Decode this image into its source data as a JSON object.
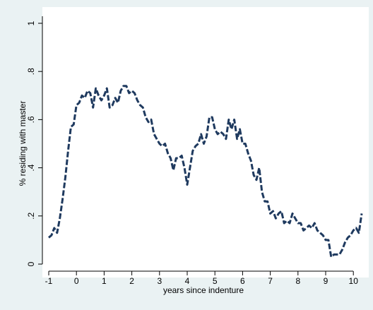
{
  "chart_data": {
    "type": "line",
    "title": "",
    "xlabel": "years since indenture",
    "ylabel": "% residing with master",
    "xlim": [
      -1,
      10.3
    ],
    "ylim": [
      0,
      1
    ],
    "xticks": [
      -1,
      0,
      1,
      2,
      3,
      4,
      5,
      6,
      7,
      8,
      9,
      10
    ],
    "yticks": [
      0,
      0.2,
      0.4,
      0.6,
      0.8,
      1
    ],
    "ytick_labels": [
      "0",
      ".2",
      ".4",
      ".6",
      ".8",
      "1"
    ],
    "grid": false,
    "legend": "none",
    "line_style": "dashed",
    "line_color": "#1f3a5f",
    "plot_background": "#ffffff",
    "page_background": "#eaf2f3",
    "series": [
      {
        "x": [
          -1.0,
          -0.9,
          -0.8,
          -0.7,
          -0.6,
          -0.5,
          -0.4,
          -0.3,
          -0.2,
          -0.1,
          0.0,
          0.1,
          0.2,
          0.3,
          0.4,
          0.5,
          0.6,
          0.7,
          0.8,
          0.9,
          1.0,
          1.1,
          1.2,
          1.3,
          1.4,
          1.5,
          1.6,
          1.7,
          1.8,
          1.9,
          2.0,
          2.1,
          2.2,
          2.3,
          2.4,
          2.5,
          2.6,
          2.7,
          2.8,
          2.9,
          3.0,
          3.1,
          3.2,
          3.3,
          3.4,
          3.5,
          3.6,
          3.7,
          3.8,
          3.9,
          4.0,
          4.1,
          4.2,
          4.3,
          4.4,
          4.5,
          4.6,
          4.7,
          4.8,
          4.9,
          5.0,
          5.1,
          5.2,
          5.3,
          5.4,
          5.5,
          5.6,
          5.7,
          5.8,
          5.9,
          6.0,
          6.1,
          6.2,
          6.3,
          6.4,
          6.5,
          6.6,
          6.7,
          6.8,
          6.9,
          7.0,
          7.1,
          7.2,
          7.3,
          7.4,
          7.5,
          7.6,
          7.7,
          7.8,
          7.9,
          8.0,
          8.1,
          8.2,
          8.3,
          8.4,
          8.5,
          8.6,
          8.7,
          8.8,
          8.9,
          9.0,
          9.1,
          9.2,
          9.3,
          9.4,
          9.5,
          9.6,
          9.7,
          9.8,
          9.9,
          10.0,
          10.1,
          10.2,
          10.3
        ],
        "values": [
          0.11,
          0.12,
          0.15,
          0.13,
          0.19,
          0.27,
          0.36,
          0.47,
          0.57,
          0.58,
          0.66,
          0.67,
          0.7,
          0.69,
          0.72,
          0.71,
          0.65,
          0.73,
          0.7,
          0.68,
          0.7,
          0.73,
          0.65,
          0.66,
          0.69,
          0.67,
          0.72,
          0.74,
          0.74,
          0.71,
          0.72,
          0.71,
          0.68,
          0.66,
          0.65,
          0.61,
          0.59,
          0.6,
          0.54,
          0.52,
          0.5,
          0.49,
          0.5,
          0.46,
          0.44,
          0.39,
          0.44,
          0.44,
          0.45,
          0.4,
          0.33,
          0.4,
          0.47,
          0.49,
          0.5,
          0.54,
          0.5,
          0.53,
          0.61,
          0.61,
          0.56,
          0.54,
          0.55,
          0.54,
          0.52,
          0.6,
          0.56,
          0.6,
          0.52,
          0.56,
          0.5,
          0.5,
          0.46,
          0.43,
          0.37,
          0.35,
          0.4,
          0.3,
          0.26,
          0.26,
          0.21,
          0.22,
          0.19,
          0.21,
          0.22,
          0.17,
          0.18,
          0.17,
          0.21,
          0.19,
          0.17,
          0.17,
          0.14,
          0.15,
          0.16,
          0.15,
          0.17,
          0.14,
          0.13,
          0.12,
          0.1,
          0.1,
          0.03,
          0.04,
          0.04,
          0.04,
          0.06,
          0.09,
          0.11,
          0.12,
          0.14,
          0.15,
          0.13,
          0.21
        ]
      }
    ]
  }
}
